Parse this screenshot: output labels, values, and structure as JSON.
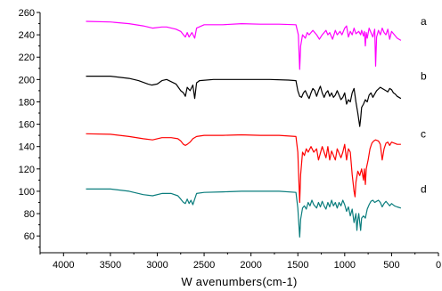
{
  "chart_data": {
    "type": "line",
    "title": "",
    "xlabel": "W avenumbers(cm-1)",
    "ylabel": "",
    "xlim": [
      4250,
      0
    ],
    "ylim": [
      45,
      260
    ],
    "x_axis_reversed": true,
    "x_ticks": [
      4000,
      3500,
      3000,
      2500,
      2000,
      1500,
      1000,
      500,
      0
    ],
    "y_ticks": [
      60,
      80,
      100,
      120,
      140,
      160,
      180,
      200,
      220,
      240,
      260
    ],
    "grid": false,
    "legend": "none",
    "series": [
      {
        "name": "a",
        "color": "#ff00ff",
        "points": [
          [
            3760,
            252
          ],
          [
            3500,
            251.5
          ],
          [
            3300,
            250
          ],
          [
            3150,
            248
          ],
          [
            3050,
            246
          ],
          [
            2950,
            247
          ],
          [
            2900,
            247
          ],
          [
            2800,
            245
          ],
          [
            2750,
            243
          ],
          [
            2720,
            240
          ],
          [
            2700,
            238
          ],
          [
            2680,
            242
          ],
          [
            2660,
            238
          ],
          [
            2630,
            242
          ],
          [
            2600,
            237
          ],
          [
            2580,
            246
          ],
          [
            2500,
            249
          ],
          [
            2300,
            249
          ],
          [
            2100,
            250
          ],
          [
            1900,
            249.5
          ],
          [
            1700,
            249.5
          ],
          [
            1520,
            249
          ],
          [
            1495,
            240
          ],
          [
            1480,
            209
          ],
          [
            1470,
            230
          ],
          [
            1450,
            240
          ],
          [
            1420,
            237
          ],
          [
            1400,
            242
          ],
          [
            1380,
            240
          ],
          [
            1340,
            244
          ],
          [
            1300,
            240
          ],
          [
            1270,
            236
          ],
          [
            1240,
            240
          ],
          [
            1200,
            244
          ],
          [
            1180,
            240
          ],
          [
            1160,
            242
          ],
          [
            1130,
            236
          ],
          [
            1100,
            244
          ],
          [
            1080,
            240
          ],
          [
            1050,
            243
          ],
          [
            1030,
            240
          ],
          [
            1000,
            246
          ],
          [
            980,
            248
          ],
          [
            960,
            238
          ],
          [
            940,
            243
          ],
          [
            920,
            240
          ],
          [
            900,
            246
          ],
          [
            880,
            241
          ],
          [
            850,
            243
          ],
          [
            830,
            240
          ],
          [
            820,
            244
          ],
          [
            800,
            239
          ],
          [
            790,
            243
          ],
          [
            780,
            230
          ],
          [
            770,
            242
          ],
          [
            760,
            237
          ],
          [
            740,
            246
          ],
          [
            720,
            242
          ],
          [
            700,
            238
          ],
          [
            680,
            245
          ],
          [
            670,
            212
          ],
          [
            660,
            238
          ],
          [
            640,
            244
          ],
          [
            620,
            240
          ],
          [
            600,
            246
          ],
          [
            580,
            242
          ],
          [
            560,
            240
          ],
          [
            540,
            245
          ],
          [
            520,
            236
          ],
          [
            500,
            243
          ],
          [
            470,
            240
          ],
          [
            440,
            237
          ],
          [
            400,
            235
          ]
        ]
      },
      {
        "name": "b",
        "color": "#000000",
        "points": [
          [
            3760,
            203
          ],
          [
            3500,
            203
          ],
          [
            3300,
            201
          ],
          [
            3200,
            199
          ],
          [
            3100,
            196
          ],
          [
            3060,
            195
          ],
          [
            3000,
            196
          ],
          [
            2950,
            199
          ],
          [
            2900,
            200
          ],
          [
            2800,
            196
          ],
          [
            2750,
            190
          ],
          [
            2720,
            188
          ],
          [
            2700,
            185
          ],
          [
            2680,
            193
          ],
          [
            2650,
            190
          ],
          [
            2620,
            195
          ],
          [
            2600,
            183
          ],
          [
            2580,
            197
          ],
          [
            2550,
            199
          ],
          [
            2400,
            200
          ],
          [
            2200,
            200
          ],
          [
            2000,
            200
          ],
          [
            1800,
            200
          ],
          [
            1600,
            199.5
          ],
          [
            1520,
            199
          ],
          [
            1500,
            190
          ],
          [
            1480,
            185
          ],
          [
            1460,
            184
          ],
          [
            1440,
            188
          ],
          [
            1420,
            190
          ],
          [
            1400,
            186
          ],
          [
            1380,
            183
          ],
          [
            1360,
            188
          ],
          [
            1340,
            192
          ],
          [
            1320,
            190
          ],
          [
            1300,
            185
          ],
          [
            1280,
            190
          ],
          [
            1260,
            194
          ],
          [
            1240,
            188
          ],
          [
            1220,
            184
          ],
          [
            1200,
            188
          ],
          [
            1180,
            190
          ],
          [
            1160,
            185
          ],
          [
            1140,
            188
          ],
          [
            1120,
            184
          ],
          [
            1100,
            186
          ],
          [
            1080,
            190
          ],
          [
            1060,
            186
          ],
          [
            1040,
            182
          ],
          [
            1020,
            184
          ],
          [
            1000,
            188
          ],
          [
            980,
            178
          ],
          [
            960,
            182
          ],
          [
            940,
            180
          ],
          [
            920,
            188
          ],
          [
            900,
            192
          ],
          [
            880,
            180
          ],
          [
            860,
            170
          ],
          [
            840,
            158
          ],
          [
            830,
            165
          ],
          [
            820,
            175
          ],
          [
            800,
            178
          ],
          [
            780,
            182
          ],
          [
            760,
            180
          ],
          [
            740,
            186
          ],
          [
            720,
            188
          ],
          [
            700,
            184
          ],
          [
            680,
            187
          ],
          [
            660,
            190
          ],
          [
            620,
            193
          ],
          [
            600,
            192
          ],
          [
            560,
            190
          ],
          [
            540,
            189
          ],
          [
            520,
            192
          ],
          [
            500,
            191
          ],
          [
            480,
            188
          ],
          [
            460,
            187
          ],
          [
            440,
            185
          ],
          [
            400,
            183
          ]
        ]
      },
      {
        "name": "c",
        "color": "#ff0000",
        "points": [
          [
            3760,
            151.5
          ],
          [
            3500,
            151
          ],
          [
            3300,
            149
          ],
          [
            3150,
            147
          ],
          [
            3050,
            146
          ],
          [
            2950,
            148
          ],
          [
            2850,
            148
          ],
          [
            2780,
            147
          ],
          [
            2750,
            145
          ],
          [
            2720,
            142
          ],
          [
            2700,
            141
          ],
          [
            2680,
            142
          ],
          [
            2650,
            144
          ],
          [
            2620,
            147
          ],
          [
            2580,
            149
          ],
          [
            2500,
            150
          ],
          [
            2300,
            150
          ],
          [
            2100,
            150.5
          ],
          [
            1900,
            150
          ],
          [
            1700,
            150
          ],
          [
            1520,
            149
          ],
          [
            1500,
            135
          ],
          [
            1480,
            90
          ],
          [
            1470,
            115
          ],
          [
            1450,
            135
          ],
          [
            1430,
            132
          ],
          [
            1410,
            138
          ],
          [
            1390,
            135
          ],
          [
            1360,
            140
          ],
          [
            1330,
            135
          ],
          [
            1300,
            138
          ],
          [
            1280,
            128
          ],
          [
            1260,
            134
          ],
          [
            1240,
            140
          ],
          [
            1220,
            135
          ],
          [
            1200,
            130
          ],
          [
            1180,
            140
          ],
          [
            1160,
            128
          ],
          [
            1140,
            136
          ],
          [
            1120,
            132
          ],
          [
            1100,
            128
          ],
          [
            1080,
            138
          ],
          [
            1060,
            134
          ],
          [
            1040,
            130
          ],
          [
            1020,
            135
          ],
          [
            1000,
            142
          ],
          [
            980,
            128
          ],
          [
            960,
            138
          ],
          [
            940,
            135
          ],
          [
            920,
            115
          ],
          [
            900,
            100
          ],
          [
            890,
            95
          ],
          [
            880,
            108
          ],
          [
            860,
            118
          ],
          [
            840,
            114
          ],
          [
            820,
            120
          ],
          [
            800,
            110
          ],
          [
            790,
            120
          ],
          [
            780,
            106
          ],
          [
            770,
            120
          ],
          [
            750,
            128
          ],
          [
            730,
            138
          ],
          [
            710,
            143
          ],
          [
            690,
            145
          ],
          [
            670,
            146
          ],
          [
            640,
            145
          ],
          [
            620,
            142
          ],
          [
            600,
            128
          ],
          [
            580,
            138
          ],
          [
            560,
            143
          ],
          [
            540,
            144
          ],
          [
            520,
            141
          ],
          [
            500,
            144
          ],
          [
            470,
            143
          ],
          [
            440,
            142
          ],
          [
            400,
            142
          ]
        ]
      },
      {
        "name": "d",
        "color": "#0a7d7d",
        "points": [
          [
            3760,
            102
          ],
          [
            3500,
            102
          ],
          [
            3300,
            100
          ],
          [
            3150,
            97
          ],
          [
            3050,
            96
          ],
          [
            2950,
            98
          ],
          [
            2850,
            98
          ],
          [
            2780,
            96
          ],
          [
            2750,
            93
          ],
          [
            2720,
            90
          ],
          [
            2700,
            89
          ],
          [
            2680,
            93
          ],
          [
            2660,
            89
          ],
          [
            2640,
            92
          ],
          [
            2620,
            88
          ],
          [
            2600,
            93
          ],
          [
            2580,
            98
          ],
          [
            2500,
            99
          ],
          [
            2300,
            99.5
          ],
          [
            2100,
            100
          ],
          [
            1900,
            100
          ],
          [
            1700,
            100
          ],
          [
            1520,
            99
          ],
          [
            1500,
            85
          ],
          [
            1480,
            59
          ],
          [
            1470,
            75
          ],
          [
            1450,
            85
          ],
          [
            1430,
            87
          ],
          [
            1410,
            84
          ],
          [
            1390,
            90
          ],
          [
            1370,
            87
          ],
          [
            1350,
            92
          ],
          [
            1330,
            88
          ],
          [
            1300,
            85
          ],
          [
            1280,
            90
          ],
          [
            1260,
            86
          ],
          [
            1240,
            91
          ],
          [
            1220,
            87
          ],
          [
            1200,
            84
          ],
          [
            1180,
            90
          ],
          [
            1160,
            86
          ],
          [
            1140,
            92
          ],
          [
            1120,
            87
          ],
          [
            1100,
            90
          ],
          [
            1080,
            85
          ],
          [
            1060,
            90
          ],
          [
            1040,
            87
          ],
          [
            1020,
            92
          ],
          [
            1000,
            88
          ],
          [
            980,
            82
          ],
          [
            960,
            86
          ],
          [
            940,
            78
          ],
          [
            920,
            84
          ],
          [
            900,
            72
          ],
          [
            880,
            80
          ],
          [
            870,
            65
          ],
          [
            860,
            74
          ],
          [
            850,
            80
          ],
          [
            840,
            72
          ],
          [
            830,
            65
          ],
          [
            820,
            76
          ],
          [
            800,
            78
          ],
          [
            780,
            76
          ],
          [
            760,
            84
          ],
          [
            740,
            88
          ],
          [
            720,
            91
          ],
          [
            700,
            92
          ],
          [
            680,
            90
          ],
          [
            660,
            91
          ],
          [
            640,
            92
          ],
          [
            620,
            90
          ],
          [
            600,
            86
          ],
          [
            580,
            89
          ],
          [
            560,
            91
          ],
          [
            540,
            89
          ],
          [
            520,
            87
          ],
          [
            500,
            89
          ],
          [
            470,
            87
          ],
          [
            440,
            86
          ],
          [
            400,
            85
          ]
        ]
      }
    ]
  }
}
